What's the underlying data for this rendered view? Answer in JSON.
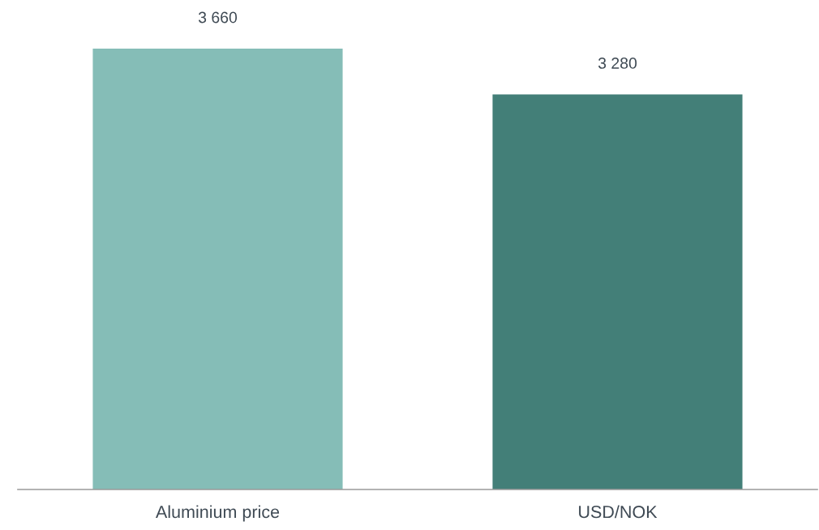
{
  "chart_data": {
    "type": "bar",
    "categories": [
      "Aluminium price",
      "USD/NOK"
    ],
    "values": [
      3660,
      3280
    ],
    "colors": [
      "#85bdb7",
      "#437f78"
    ],
    "value_labels": [
      "3 660",
      "3 280"
    ],
    "tick_labels": "x",
    "grid": false,
    "legend": false
  }
}
